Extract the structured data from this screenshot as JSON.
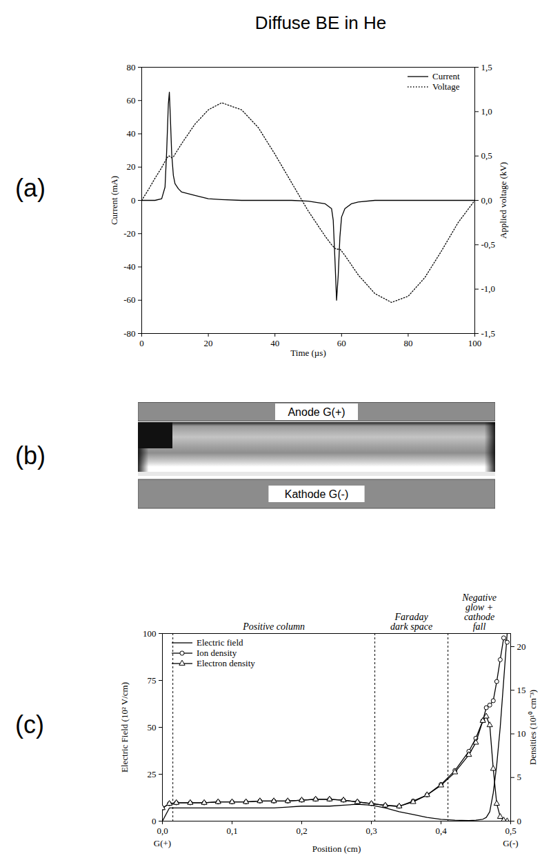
{
  "title": "Diffuse BE in He",
  "chart_data": [
    {
      "panel": "(a)",
      "type": "line",
      "x_label": "Time (µs)",
      "y_label": "Current (mA)",
      "y2_label": "Applied voltage (kV)",
      "xlim": [
        0,
        100
      ],
      "xticks": [
        0,
        20,
        40,
        60,
        80,
        100
      ],
      "ylim": [
        -80,
        80
      ],
      "yticks": [
        -80,
        -60,
        -40,
        -20,
        0,
        20,
        40,
        60,
        80
      ],
      "y2lim": [
        -1.5,
        1.5
      ],
      "y2ticks": [
        {
          "value": -1.5,
          "label": "-1,5"
        },
        {
          "value": -1.0,
          "label": "-1,0"
        },
        {
          "value": -0.5,
          "label": "-0,5"
        },
        {
          "value": 0,
          "label": "0,0"
        },
        {
          "value": 0.5,
          "label": "0,5"
        },
        {
          "value": 1.0,
          "label": "1,0"
        },
        {
          "value": 1.5,
          "label": "1,5"
        }
      ],
      "legend": "top-right",
      "x": [
        0,
        2,
        4,
        6,
        7,
        7.5,
        8,
        8.3,
        8.6,
        9,
        9.5,
        10,
        11,
        12,
        14,
        16,
        20,
        24,
        30,
        35,
        40,
        45,
        50,
        55,
        57,
        57.5,
        58,
        58.5,
        59,
        59.5,
        60,
        61,
        63,
        65,
        70,
        75,
        80,
        85,
        90,
        95,
        100
      ],
      "series": [
        {
          "name": "Current",
          "color": "#000000",
          "line_style": "solid",
          "values": [
            0,
            0,
            0,
            1,
            8,
            30,
            58,
            65,
            50,
            28,
            15,
            10,
            7,
            5,
            4,
            3,
            1,
            0.5,
            0,
            0,
            0,
            0,
            -0.5,
            -2,
            -5,
            -12,
            -35,
            -60,
            -45,
            -22,
            -10,
            -5,
            -2,
            -1,
            0,
            0,
            0,
            0,
            0,
            0,
            0
          ]
        },
        {
          "name": "Voltage",
          "color": "#000000",
          "line_style": "dotted",
          "axis": "y2",
          "values": [
            0,
            0.12,
            0.25,
            0.37,
            0.44,
            0.47,
            0.5,
            0.5,
            0.49,
            0.48,
            0.49,
            0.52,
            0.58,
            0.64,
            0.75,
            0.86,
            1.02,
            1.1,
            1.02,
            0.82,
            0.52,
            0.2,
            -0.12,
            -0.4,
            -0.5,
            -0.52,
            -0.54,
            -0.55,
            -0.55,
            -0.55,
            -0.57,
            -0.62,
            -0.73,
            -0.84,
            -1.05,
            -1.15,
            -1.08,
            -0.87,
            -0.57,
            -0.25,
            0
          ]
        }
      ]
    },
    {
      "panel": "(c)",
      "type": "line",
      "x_label": "Position (cm)",
      "y_label": "Electric Field (10² V/cm)",
      "y2_label": "Densities (10¹⁰ cm⁻³)",
      "xlim": [
        0,
        0.5
      ],
      "xticks": [
        {
          "value": 0,
          "label": "0,0"
        },
        {
          "value": 0.1,
          "label": "0,1"
        },
        {
          "value": 0.2,
          "label": "0,2"
        },
        {
          "value": 0.3,
          "label": "0,3"
        },
        {
          "value": 0.4,
          "label": "0,4"
        },
        {
          "value": 0.5,
          "label": "0,5"
        }
      ],
      "ylim": [
        0,
        100
      ],
      "yticks": [
        0,
        25,
        50,
        75,
        100
      ],
      "y2lim": [
        0,
        21.5
      ],
      "y2ticks": [
        0,
        5,
        10,
        15,
        20
      ],
      "legend": "top-left",
      "annotations": [
        {
          "text": "G(+)",
          "x": 0
        },
        {
          "text": "G(-)",
          "x": 0.5
        }
      ],
      "regions": [
        {
          "label": "Positive column",
          "start": 0.015,
          "end": 0.305
        },
        {
          "label": "Faraday dark space",
          "start": 0.305,
          "end": 0.41
        },
        {
          "label": "Negative glow + cathode fall",
          "start": 0.41,
          "end": 0.5
        }
      ],
      "x": [
        0,
        0.01,
        0.02,
        0.04,
        0.06,
        0.08,
        0.1,
        0.12,
        0.14,
        0.16,
        0.18,
        0.2,
        0.22,
        0.24,
        0.26,
        0.28,
        0.3,
        0.32,
        0.34,
        0.36,
        0.38,
        0.4,
        0.42,
        0.44,
        0.45,
        0.46,
        0.465,
        0.47,
        0.475,
        0.48,
        0.485,
        0.49,
        0.495
      ],
      "series": [
        {
          "name": "Electric field",
          "color": "#000000",
          "line_style": "solid",
          "values": [
            0,
            7,
            7,
            7,
            7,
            7,
            7,
            7,
            7,
            7,
            7.5,
            8,
            8,
            8,
            8.5,
            9,
            8.5,
            7,
            5,
            3.5,
            2,
            1,
            0.5,
            0.3,
            0.5,
            1,
            2,
            5,
            15,
            30,
            50,
            75,
            100
          ]
        },
        {
          "name": "Ion density",
          "color": "#000000",
          "line_style": "solid",
          "marker": "circle",
          "axis": "y2",
          "values": [
            1.5,
            2,
            2.1,
            2.1,
            2.1,
            2.2,
            2.2,
            2.2,
            2.3,
            2.3,
            2.3,
            2.4,
            2.5,
            2.5,
            2.4,
            2.2,
            2.0,
            1.8,
            1.7,
            2.3,
            3.0,
            4.2,
            5.8,
            8.0,
            9.5,
            11.5,
            13.0,
            13.3,
            13.8,
            16.0,
            18.5,
            21.0,
            20.5
          ]
        },
        {
          "name": "Electron density",
          "color": "#000000",
          "line_style": "solid",
          "marker": "triangle",
          "axis": "y2",
          "values": [
            1.5,
            2,
            2.1,
            2.1,
            2.1,
            2.2,
            2.2,
            2.2,
            2.3,
            2.3,
            2.3,
            2.4,
            2.5,
            2.5,
            2.4,
            2.2,
            2.0,
            1.8,
            1.7,
            2.2,
            3.0,
            4.1,
            5.6,
            7.6,
            9.0,
            11.5,
            12.0,
            11.0,
            6.0,
            2.0,
            0.5,
            0.1,
            0
          ]
        }
      ]
    }
  ],
  "diagram": {
    "panel": "(b)",
    "anode": "Anode G(+)",
    "cathode": "Kathode G(-)"
  }
}
